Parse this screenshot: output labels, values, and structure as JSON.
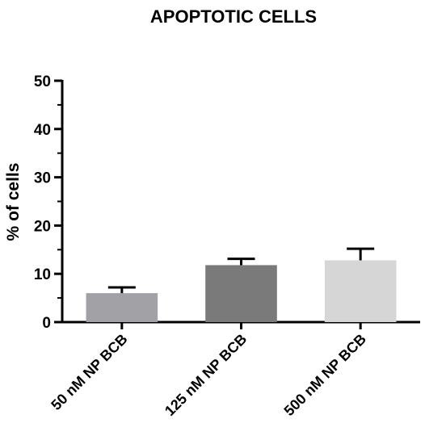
{
  "chart_data": {
    "type": "bar",
    "title": "APOPTOTIC CELLS",
    "xlabel": "",
    "ylabel": "% of cells",
    "ylim": [
      0,
      50
    ],
    "yticks": [
      0,
      10,
      20,
      30,
      40,
      50
    ],
    "categories": [
      "50 nM NP BCB",
      "125 nM NP BCB",
      "500 nM NP BCB"
    ],
    "values": [
      6.0,
      11.8,
      12.8
    ],
    "errors": [
      1.2,
      1.3,
      2.4
    ],
    "colors": [
      "#a2a2a6",
      "#7a7a7a",
      "#d6d6d6"
    ],
    "grid": false,
    "legend": "none"
  }
}
